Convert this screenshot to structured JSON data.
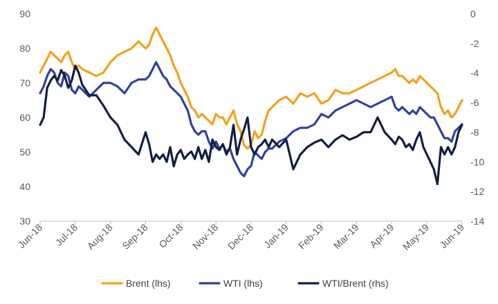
{
  "chart_data": {
    "type": "line",
    "title": "",
    "xlabel": "",
    "ylabel_left": "",
    "ylabel_right": "",
    "x_categories": [
      "Jun-18",
      "Jul-18",
      "Aug-18",
      "Sep-18",
      "Oct-18",
      "Nov-18",
      "Dec-18",
      "Jan-19",
      "Feb-19",
      "Mar-19",
      "Apr-19",
      "May-19",
      "Jun-19"
    ],
    "left_axis": {
      "ylim": [
        30,
        90
      ],
      "ticks": [
        "30",
        "40",
        "50",
        "60",
        "70",
        "80",
        "90"
      ]
    },
    "right_axis": {
      "ylim": [
        -14,
        0
      ],
      "ticks": [
        "-14",
        "-12",
        "-10",
        "-8",
        "-6",
        "-4",
        "-2",
        "0"
      ]
    },
    "grid": false,
    "legend_position": "bottom",
    "series": [
      {
        "name": "Brent (lhs)",
        "axis": "left",
        "color": "#F5A01A",
        "x": [
          0,
          0.1,
          0.2,
          0.3,
          0.4,
          0.5,
          0.6,
          0.7,
          0.8,
          0.9,
          1.0,
          1.1,
          1.2,
          1.4,
          1.6,
          1.8,
          2.0,
          2.2,
          2.4,
          2.6,
          2.8,
          3.0,
          3.1,
          3.2,
          3.3,
          3.4,
          3.5,
          3.6,
          3.7,
          3.8,
          3.9,
          4.0,
          4.1,
          4.2,
          4.3,
          4.4,
          4.5,
          4.6,
          4.7,
          4.8,
          4.9,
          5.0,
          5.1,
          5.2,
          5.3,
          5.4,
          5.5,
          5.6,
          5.7,
          5.8,
          5.9,
          6.0,
          6.1,
          6.2,
          6.3,
          6.4,
          6.5,
          6.6,
          6.8,
          7.0,
          7.2,
          7.4,
          7.6,
          7.8,
          8.0,
          8.2,
          8.4,
          8.6,
          8.8,
          9.0,
          9.2,
          9.4,
          9.6,
          9.8,
          10.0,
          10.1,
          10.2,
          10.3,
          10.4,
          10.5,
          10.6,
          10.7,
          10.8,
          10.9,
          11.0,
          11.1,
          11.2,
          11.3,
          11.4,
          11.5,
          11.6,
          11.7,
          11.8,
          11.9,
          12.0
        ],
        "values": [
          73,
          75,
          77,
          79,
          78,
          77,
          76,
          78,
          79,
          76,
          74,
          75,
          74,
          73,
          72,
          73,
          76,
          78,
          79,
          80,
          82,
          80,
          81,
          84,
          86,
          84,
          82,
          80,
          78,
          75,
          73,
          70,
          68,
          66,
          63,
          62,
          60,
          61,
          60,
          59,
          58,
          61,
          60,
          60,
          58,
          60,
          62,
          58,
          56,
          52,
          51,
          52,
          56,
          54,
          55,
          59,
          62,
          63,
          65,
          66,
          64,
          67,
          66,
          67,
          64,
          65,
          68,
          67,
          67,
          68,
          69,
          70,
          71,
          72,
          73,
          74,
          72,
          72,
          71,
          70,
          71,
          70,
          72,
          71,
          70,
          69,
          68,
          67,
          63,
          61,
          62,
          60,
          61,
          63,
          65
        ]
      },
      {
        "name": "WTI (lhs)",
        "axis": "left",
        "color": "#2E40A0",
        "x": [
          0,
          0.1,
          0.2,
          0.3,
          0.4,
          0.5,
          0.6,
          0.7,
          0.8,
          0.9,
          1.0,
          1.1,
          1.2,
          1.4,
          1.6,
          1.8,
          2.0,
          2.2,
          2.4,
          2.6,
          2.8,
          3.0,
          3.1,
          3.2,
          3.3,
          3.4,
          3.5,
          3.6,
          3.7,
          3.8,
          3.9,
          4.0,
          4.1,
          4.2,
          4.3,
          4.4,
          4.5,
          4.6,
          4.7,
          4.8,
          4.9,
          5.0,
          5.1,
          5.2,
          5.3,
          5.4,
          5.5,
          5.6,
          5.7,
          5.8,
          5.9,
          6.0,
          6.1,
          6.2,
          6.3,
          6.4,
          6.5,
          6.6,
          6.8,
          7.0,
          7.2,
          7.4,
          7.6,
          7.8,
          8.0,
          8.2,
          8.4,
          8.6,
          8.8,
          9.0,
          9.2,
          9.4,
          9.6,
          9.8,
          10.0,
          10.1,
          10.2,
          10.3,
          10.4,
          10.5,
          10.6,
          10.7,
          10.8,
          10.9,
          11.0,
          11.1,
          11.2,
          11.3,
          11.4,
          11.5,
          11.6,
          11.7,
          11.8,
          11.9,
          12.0
        ],
        "values": [
          67,
          69,
          72,
          74,
          73,
          70,
          69,
          73,
          72,
          68,
          67,
          69,
          68,
          66,
          68,
          70,
          70,
          69,
          67,
          70,
          71,
          71,
          72,
          74,
          76,
          74,
          72,
          71,
          69,
          68,
          67,
          66,
          64,
          62,
          58,
          56,
          55,
          56,
          56,
          53,
          51,
          53,
          51,
          52,
          50,
          51,
          48,
          46,
          44,
          43,
          45,
          46,
          50,
          49,
          48,
          50,
          51,
          51,
          53,
          54,
          56,
          57,
          57,
          58,
          61,
          60,
          62,
          63,
          64,
          65,
          64,
          63,
          64,
          65,
          66,
          63,
          62,
          63,
          62,
          61,
          62,
          61,
          63,
          62,
          61,
          60,
          60,
          58,
          56,
          54,
          54,
          53,
          56,
          57,
          58
        ]
      },
      {
        "name": "WTI/Brent (rhs)",
        "axis": "right",
        "color": "#131E42",
        "x": [
          0,
          0.1,
          0.2,
          0.3,
          0.4,
          0.5,
          0.6,
          0.7,
          0.8,
          0.9,
          1.0,
          1.1,
          1.2,
          1.4,
          1.6,
          1.8,
          2.0,
          2.2,
          2.4,
          2.6,
          2.8,
          3.0,
          3.1,
          3.2,
          3.3,
          3.4,
          3.5,
          3.6,
          3.7,
          3.8,
          3.9,
          4.0,
          4.1,
          4.2,
          4.3,
          4.4,
          4.5,
          4.6,
          4.7,
          4.8,
          4.9,
          5.0,
          5.1,
          5.2,
          5.3,
          5.4,
          5.5,
          5.6,
          5.7,
          5.8,
          5.9,
          6.0,
          6.1,
          6.2,
          6.3,
          6.4,
          6.5,
          6.6,
          6.8,
          7.0,
          7.2,
          7.4,
          7.6,
          7.8,
          8.0,
          8.2,
          8.4,
          8.6,
          8.8,
          9.0,
          9.2,
          9.4,
          9.6,
          9.8,
          10.0,
          10.1,
          10.2,
          10.3,
          10.4,
          10.5,
          10.6,
          10.7,
          10.8,
          10.9,
          11.0,
          11.1,
          11.2,
          11.3,
          11.4,
          11.5,
          11.6,
          11.7,
          11.8,
          11.9,
          12.0
        ],
        "values": [
          -7.5,
          -7.0,
          -5.0,
          -4.5,
          -4.2,
          -4.5,
          -3.8,
          -4.2,
          -5.0,
          -4.5,
          -3.5,
          -4.0,
          -4.8,
          -5.5,
          -5.5,
          -6.2,
          -7.0,
          -7.5,
          -8.5,
          -9.0,
          -9.5,
          -8.0,
          -8.8,
          -10.0,
          -9.5,
          -9.8,
          -9.5,
          -10.0,
          -9.0,
          -10.3,
          -9.5,
          -9.2,
          -9.8,
          -9.5,
          -9.3,
          -9.8,
          -9.0,
          -9.8,
          -9.2,
          -10.0,
          -8.5,
          -9.0,
          -9.2,
          -8.8,
          -9.5,
          -9.0,
          -7.5,
          -9.5,
          -8.5,
          -7.8,
          -7.0,
          -9.0,
          -9.5,
          -9.0,
          -8.8,
          -8.5,
          -9.0,
          -8.5,
          -9.0,
          -8.5,
          -10.5,
          -9.5,
          -9.0,
          -8.7,
          -8.5,
          -9.0,
          -8.5,
          -8.2,
          -8.5,
          -8.3,
          -8.0,
          -8.0,
          -7.0,
          -8.0,
          -8.5,
          -8.8,
          -8.3,
          -8.5,
          -9.0,
          -8.8,
          -9.2,
          -8.5,
          -8.0,
          -9.0,
          -9.5,
          -10.0,
          -10.5,
          -11.5,
          -9.0,
          -9.5,
          -9.0,
          -9.5,
          -9.0,
          -8.0,
          -7.5
        ]
      }
    ]
  }
}
